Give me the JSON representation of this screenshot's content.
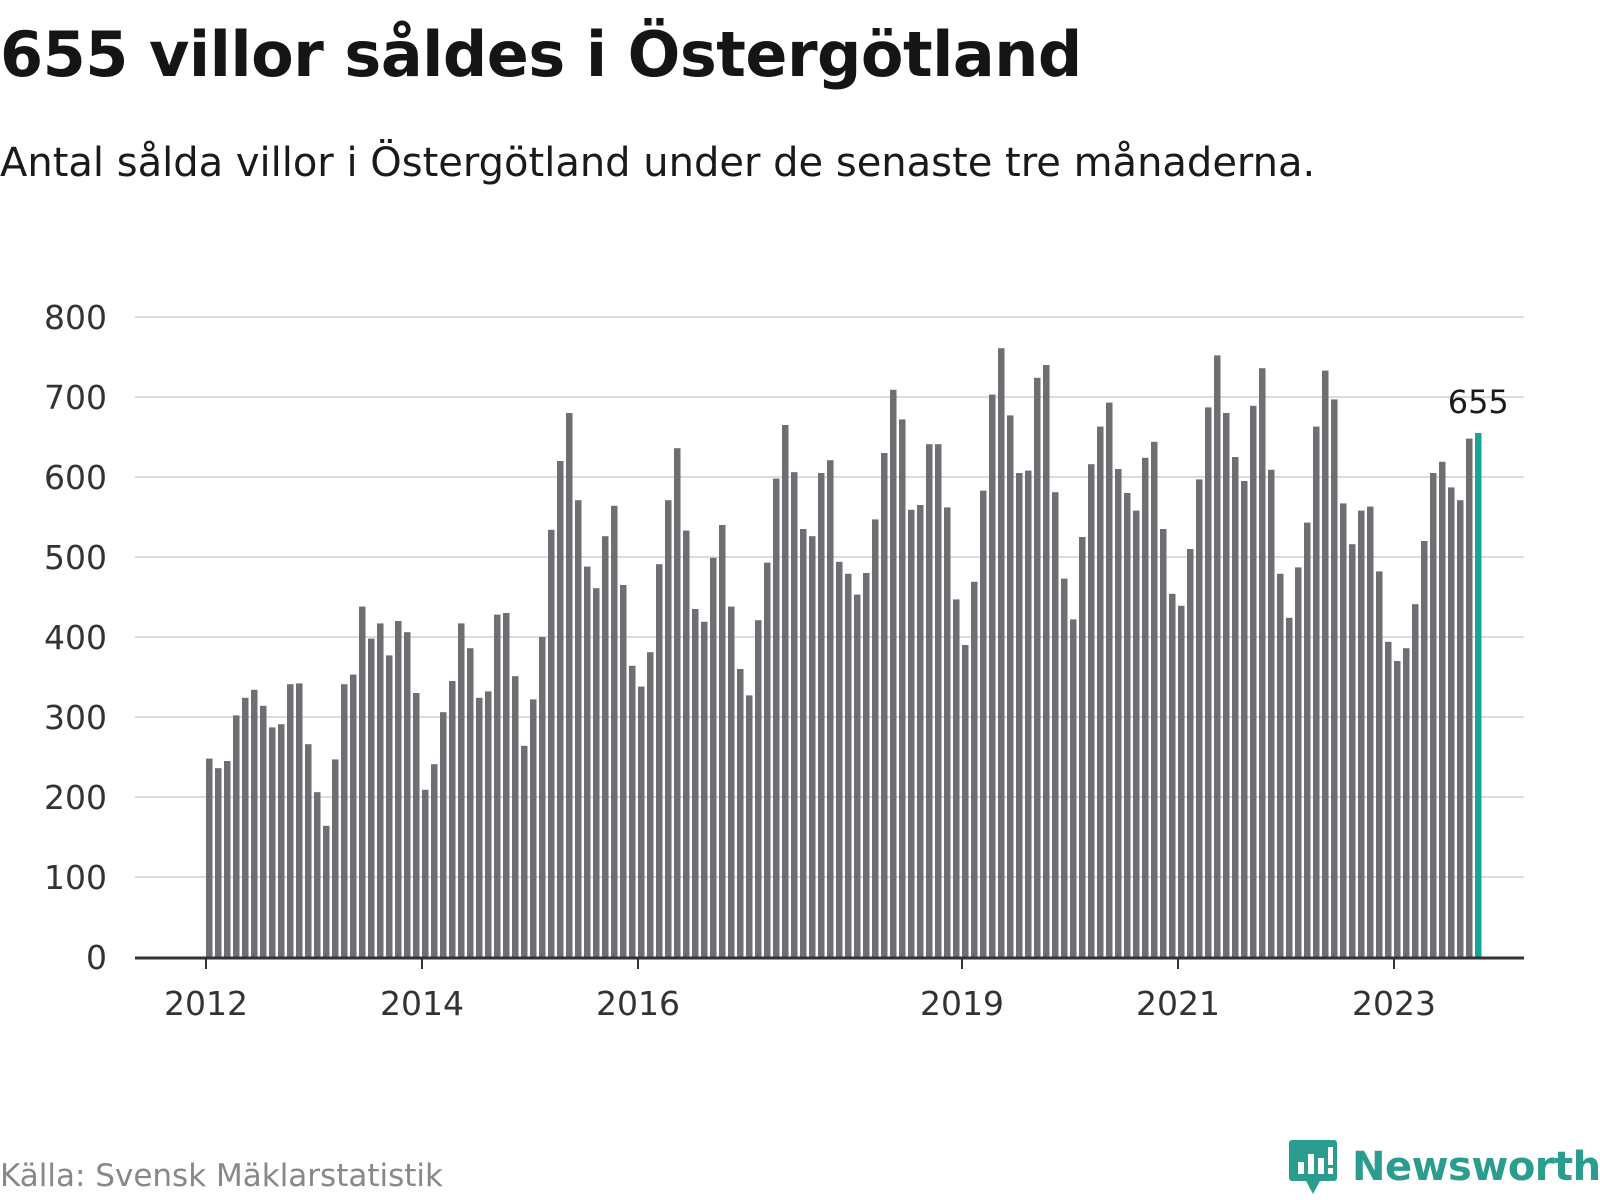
{
  "title": "655 villor såldes i Östergötland",
  "subtitle": "Antal sålda villor i Östergötland under de senaste tre månaderna.",
  "source": "Källa: Svensk Mäklarstatistik",
  "brand": {
    "name": "Newsworthy",
    "icon": "newsworthy-logo-icon"
  },
  "colors": {
    "bar": "#6e6e73",
    "highlight": "#16a596",
    "grid": "#dcdcdc",
    "axis": "#333333",
    "brand": "#2a9d8f"
  },
  "chart_data": {
    "type": "bar",
    "xlabel": "",
    "ylabel": "",
    "ylim": [
      0,
      800
    ],
    "yticks": [
      "0",
      "100",
      "200",
      "300",
      "400",
      "500",
      "600",
      "700",
      "800"
    ],
    "xticks": [
      {
        "label": "2012",
        "index": 0
      },
      {
        "label": "2014",
        "index": 24
      },
      {
        "label": "2016",
        "index": 48
      },
      {
        "label": "2019",
        "index": 84
      },
      {
        "label": "2021",
        "index": 108
      },
      {
        "label": "2023",
        "index": 132
      }
    ],
    "grid": true,
    "highlight_label": "655",
    "values": [
      248,
      236,
      245,
      302,
      324,
      334,
      314,
      287,
      291,
      341,
      342,
      266,
      206,
      164,
      247,
      341,
      353,
      438,
      398,
      417,
      377,
      420,
      406,
      330,
      209,
      241,
      306,
      345,
      417,
      386,
      324,
      332,
      428,
      430,
      351,
      264,
      322,
      400,
      534,
      620,
      680,
      571,
      488,
      461,
      526,
      564,
      465,
      364,
      338,
      381,
      491,
      571,
      636,
      533,
      435,
      419,
      499,
      540,
      438,
      360,
      327,
      421,
      493,
      598,
      665,
      606,
      535,
      526,
      605,
      621,
      494,
      479,
      453,
      480,
      547,
      630,
      709,
      672,
      559,
      565,
      641,
      641,
      562,
      447,
      390,
      469,
      583,
      703,
      761,
      677,
      605,
      608,
      724,
      740,
      581,
      473,
      422,
      525,
      616,
      663,
      693,
      610,
      580,
      558,
      624,
      644,
      535,
      454,
      439,
      510,
      597,
      687,
      752,
      680,
      625,
      595,
      689,
      736,
      609,
      479,
      424,
      487,
      543,
      663,
      733,
      697,
      567,
      516,
      558,
      563,
      482,
      394,
      370,
      386,
      441,
      520,
      605,
      619,
      587,
      571,
      648,
      655
    ]
  }
}
